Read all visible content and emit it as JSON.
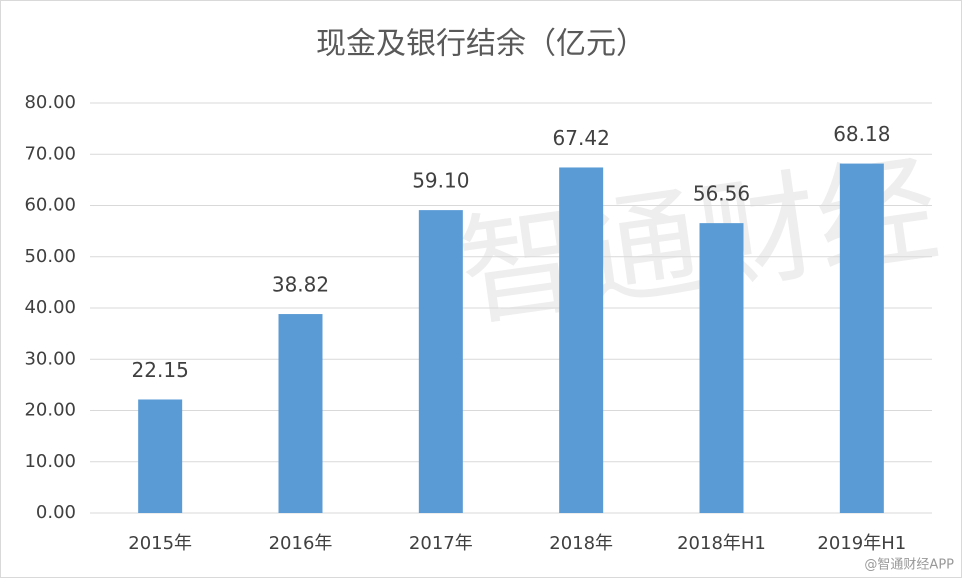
{
  "chart_data": {
    "type": "bar",
    "title": "现金及银行结余（亿元）",
    "categories": [
      "2015年",
      "2016年",
      "2017年",
      "2018年",
      "2018年H1",
      "2019年H1"
    ],
    "values": [
      22.15,
      38.82,
      59.1,
      67.42,
      56.56,
      68.18
    ],
    "value_labels": [
      "22.15",
      "38.82",
      "59.10",
      "67.42",
      "56.56",
      "68.18"
    ],
    "color": "#5b9bd5",
    "ylim": [
      0,
      80
    ],
    "yticks": [
      {
        "value": 0,
        "label": "0.00"
      },
      {
        "value": 10,
        "label": "10.00"
      },
      {
        "value": 20,
        "label": "20.00"
      },
      {
        "value": 30,
        "label": "30.00"
      },
      {
        "value": 40,
        "label": "40.00"
      },
      {
        "value": 50,
        "label": "50.00"
      },
      {
        "value": 60,
        "label": "60.00"
      },
      {
        "value": 70,
        "label": "70.00"
      },
      {
        "value": 80,
        "label": "80.00"
      }
    ],
    "grid": true,
    "watermark": "智通财经",
    "source": "@智通财经APP"
  }
}
